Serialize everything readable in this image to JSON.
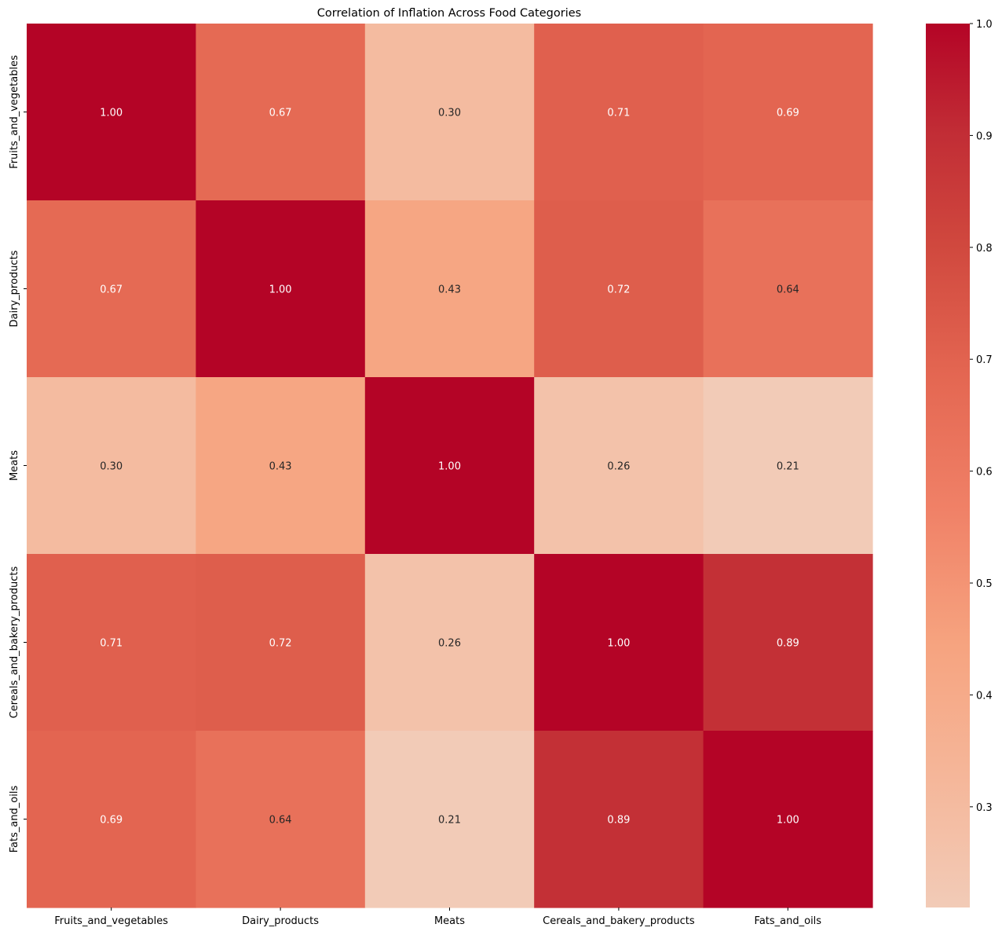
{
  "chart_data": {
    "type": "heatmap",
    "title": "Correlation of Inflation Across Food Categories",
    "xlabel": "",
    "ylabel": "",
    "columns": [
      "Fruits_and_vegetables",
      "Dairy_products",
      "Meats",
      "Cereals_and_bakery_products",
      "Fats_and_oils"
    ],
    "rows": [
      "Fruits_and_vegetables",
      "Dairy_products",
      "Meats",
      "Cereals_and_bakery_products",
      "Fats_and_oils"
    ],
    "values": [
      [
        1.0,
        0.67,
        0.3,
        0.71,
        0.69
      ],
      [
        0.67,
        1.0,
        0.43,
        0.72,
        0.64
      ],
      [
        0.3,
        0.43,
        1.0,
        0.26,
        0.21
      ],
      [
        0.71,
        0.72,
        0.26,
        1.0,
        0.89
      ],
      [
        0.69,
        0.64,
        0.21,
        0.89,
        1.0
      ]
    ],
    "value_format": "0.00",
    "colormap": "coolwarm (upper half)",
    "color_range": [
      0.21,
      1.0
    ],
    "colorbar": {
      "ticks": [
        0.3,
        0.4,
        0.5,
        0.6,
        0.7,
        0.8,
        0.9,
        1.0
      ],
      "tick_labels": [
        "0.3",
        "0.4",
        "0.5",
        "0.6",
        "0.7",
        "0.8",
        "0.9",
        "1.0"
      ],
      "position": "right"
    }
  }
}
